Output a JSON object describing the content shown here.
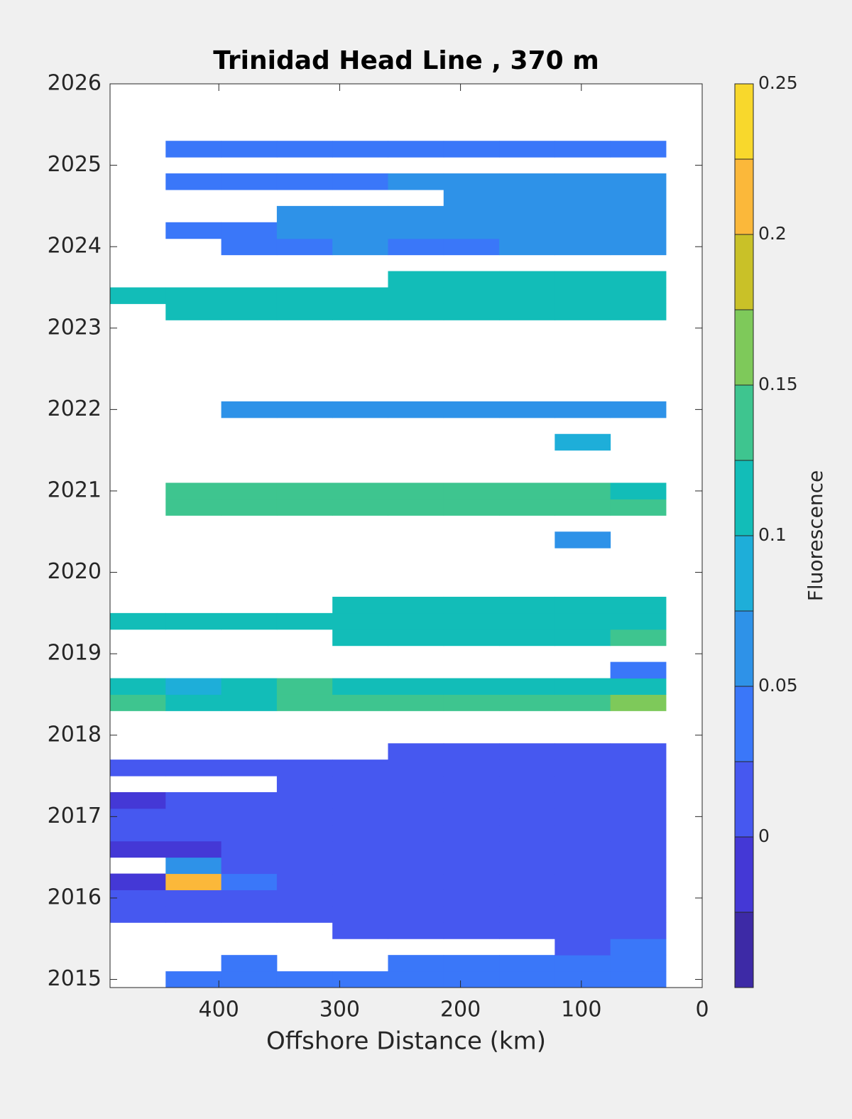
{
  "chart_data": {
    "type": "contour",
    "title": "Trinidad Head Line , 370 m",
    "xlabel": "Offshore Distance (km)",
    "colorbar_label": "Fluorescence",
    "xlim": [
      490,
      0
    ],
    "xticks": [
      400,
      300,
      200,
      100,
      0
    ],
    "ylim": [
      2014.9,
      2026
    ],
    "yticks": [
      2015,
      2016,
      2017,
      2018,
      2019,
      2020,
      2021,
      2022,
      2023,
      2024,
      2025,
      2026
    ],
    "levels": [
      -0.05,
      -0.025,
      0,
      0.025,
      0.05,
      0.075,
      0.1,
      0.125,
      0.15,
      0.175,
      0.2,
      0.225,
      0.25
    ],
    "colors": [
      "#3d2aa6",
      "#4438d6",
      "#4658f0",
      "#3a77f9",
      "#2e92e8",
      "#1eaed9",
      "#12bdb8",
      "#3ec58f",
      "#7ec95a",
      "#c9c128",
      "#fbb83a",
      "#f8d82c"
    ],
    "cticks": [
      0,
      0.05,
      0.1,
      0.15,
      0.2,
      0.25
    ],
    "x": [
      467,
      421,
      375,
      329,
      283,
      237,
      191,
      145,
      99,
      53
    ],
    "y": [
      2015.0,
      2015.2,
      2015.4,
      2015.6,
      2015.8,
      2016.0,
      2016.2,
      2016.4,
      2016.6,
      2016.8,
      2017.0,
      2017.2,
      2017.4,
      2017.6,
      2017.8,
      2018.0,
      2018.2,
      2018.4,
      2018.6,
      2018.8,
      2019.0,
      2019.2,
      2019.4,
      2019.6,
      2019.8,
      2020.0,
      2020.2,
      2020.4,
      2020.6,
      2020.8,
      2021.0,
      2021.2,
      2021.4,
      2021.6,
      2021.8,
      2022.0,
      2022.2,
      2022.4,
      2022.6,
      2022.8,
      2023.0,
      2023.2,
      2023.4,
      2023.6,
      2023.8,
      2024.0,
      2024.2,
      2024.4,
      2024.6,
      2024.8,
      2025.0,
      2025.2
    ],
    "z": [
      [
        null,
        0.04,
        0.04,
        0.04,
        0.04,
        0.04,
        0.04,
        0.04,
        0.04,
        0.04
      ],
      [
        null,
        null,
        0.03,
        null,
        null,
        0.04,
        0.04,
        0.04,
        0.04,
        0.04
      ],
      [
        null,
        null,
        null,
        null,
        null,
        null,
        null,
        null,
        0.01,
        0.04
      ],
      [
        null,
        null,
        null,
        null,
        0.01,
        0.01,
        0.01,
        0.01,
        0.01,
        0.01
      ],
      [
        0.02,
        0.02,
        0.02,
        0.01,
        0.01,
        0.01,
        0.01,
        0.01,
        0.01,
        0.01
      ],
      [
        0.0,
        0.02,
        0.02,
        0.02,
        0.01,
        0.01,
        0.01,
        0.0,
        0.01,
        0.01
      ],
      [
        -0.01,
        0.21,
        0.03,
        0.02,
        0.01,
        0.01,
        0.01,
        0.01,
        0.0,
        0.01
      ],
      [
        null,
        0.06,
        0.02,
        0.01,
        0.01,
        0.01,
        0.01,
        0.01,
        0.01,
        0.01
      ],
      [
        -0.01,
        -0.01,
        0.01,
        0.01,
        0.01,
        0.01,
        0.0,
        0.01,
        0.01,
        0.01
      ],
      [
        0.01,
        0.01,
        0.01,
        0.02,
        0.02,
        0.02,
        0.02,
        0.02,
        0.02,
        0.02
      ],
      [
        0.0,
        0.01,
        0.02,
        0.01,
        0.01,
        0.01,
        0.01,
        0.0,
        0.01,
        0.0
      ],
      [
        -0.01,
        0.02,
        0.02,
        0.01,
        0.01,
        0.01,
        0.01,
        0.0,
        0.0,
        0.01
      ],
      [
        null,
        null,
        null,
        0.01,
        0.01,
        0.01,
        0.01,
        0.01,
        0.01,
        0.01
      ],
      [
        0.01,
        0.0,
        0.01,
        0.01,
        0.01,
        0.01,
        0.01,
        0.01,
        0.01,
        0.01
      ],
      [
        null,
        null,
        null,
        null,
        null,
        0.01,
        0.01,
        0.01,
        0.01,
        0.01
      ],
      [
        null,
        null,
        null,
        null,
        null,
        null,
        null,
        null,
        null,
        null
      ],
      [
        null,
        null,
        null,
        null,
        null,
        null,
        null,
        null,
        null,
        null
      ],
      [
        0.13,
        0.12,
        0.12,
        0.13,
        0.13,
        0.14,
        0.13,
        0.13,
        0.14,
        0.15
      ],
      [
        0.12,
        0.09,
        0.12,
        0.13,
        0.12,
        0.12,
        0.12,
        0.11,
        0.12,
        0.12
      ],
      [
        null,
        null,
        null,
        null,
        null,
        null,
        null,
        null,
        null,
        0.03
      ],
      [
        null,
        null,
        null,
        null,
        null,
        null,
        null,
        null,
        null,
        null
      ],
      [
        null,
        null,
        null,
        null,
        0.1,
        0.11,
        0.11,
        0.11,
        0.11,
        0.13
      ],
      [
        0.1,
        0.1,
        0.1,
        0.1,
        0.11,
        0.12,
        0.11,
        0.12,
        0.11,
        0.12
      ],
      [
        null,
        null,
        null,
        null,
        0.11,
        0.11,
        0.11,
        0.11,
        0.11,
        0.11
      ],
      [
        null,
        null,
        null,
        null,
        null,
        null,
        null,
        null,
        null,
        null
      ],
      [
        null,
        null,
        null,
        null,
        null,
        null,
        null,
        null,
        null,
        null
      ],
      [
        null,
        null,
        null,
        null,
        null,
        null,
        null,
        null,
        null,
        null
      ],
      [
        null,
        null,
        null,
        null,
        null,
        null,
        null,
        null,
        0.06,
        null
      ],
      [
        null,
        null,
        null,
        null,
        null,
        null,
        null,
        null,
        null,
        null
      ],
      [
        null,
        0.13,
        0.14,
        0.14,
        0.13,
        0.14,
        0.13,
        0.13,
        0.14,
        0.13
      ],
      [
        null,
        0.13,
        0.13,
        0.14,
        0.14,
        0.13,
        0.13,
        0.13,
        0.13,
        0.12
      ],
      [
        null,
        null,
        null,
        null,
        null,
        null,
        null,
        null,
        null,
        null
      ],
      [
        null,
        null,
        null,
        null,
        null,
        null,
        null,
        null,
        null,
        null
      ],
      [
        null,
        null,
        null,
        null,
        null,
        null,
        null,
        null,
        0.08,
        null
      ],
      [
        null,
        null,
        null,
        null,
        null,
        null,
        null,
        null,
        null,
        null
      ],
      [
        null,
        null,
        0.05,
        0.05,
        0.05,
        0.05,
        0.05,
        0.05,
        0.05,
        0.05
      ],
      [
        null,
        null,
        null,
        null,
        null,
        null,
        null,
        null,
        null,
        null
      ],
      [
        null,
        null,
        null,
        null,
        null,
        null,
        null,
        null,
        null,
        null
      ],
      [
        null,
        null,
        null,
        null,
        null,
        null,
        null,
        null,
        null,
        null
      ],
      [
        null,
        null,
        null,
        null,
        null,
        null,
        null,
        null,
        null,
        null
      ],
      [
        null,
        null,
        null,
        null,
        null,
        null,
        null,
        null,
        null,
        null
      ],
      [
        null,
        0.11,
        0.11,
        0.11,
        0.11,
        0.11,
        0.11,
        0.11,
        0.11,
        0.11
      ],
      [
        0.11,
        0.12,
        0.11,
        0.11,
        0.11,
        0.11,
        0.11,
        0.11,
        0.11,
        0.11
      ],
      [
        null,
        null,
        null,
        null,
        null,
        0.11,
        0.11,
        0.11,
        0.11,
        0.11
      ],
      [
        null,
        null,
        null,
        null,
        null,
        null,
        null,
        null,
        null,
        null
      ],
      [
        null,
        null,
        0.04,
        0.04,
        0.05,
        0.04,
        0.04,
        0.05,
        0.05,
        0.05
      ],
      [
        null,
        0.03,
        0.04,
        0.05,
        0.05,
        0.05,
        0.05,
        0.05,
        0.05,
        0.05
      ],
      [
        null,
        null,
        null,
        0.06,
        0.06,
        0.06,
        0.07,
        0.06,
        0.06,
        0.06
      ],
      [
        null,
        null,
        null,
        null,
        null,
        null,
        0.06,
        0.07,
        0.06,
        0.06
      ],
      [
        null,
        0.04,
        0.04,
        0.04,
        0.04,
        0.05,
        0.06,
        0.06,
        0.06,
        0.05
      ],
      [
        null,
        null,
        null,
        null,
        null,
        null,
        null,
        null,
        null,
        null
      ],
      [
        null,
        0.04,
        0.04,
        0.04,
        0.04,
        0.04,
        0.04,
        0.04,
        0.04,
        0.04
      ]
    ]
  }
}
